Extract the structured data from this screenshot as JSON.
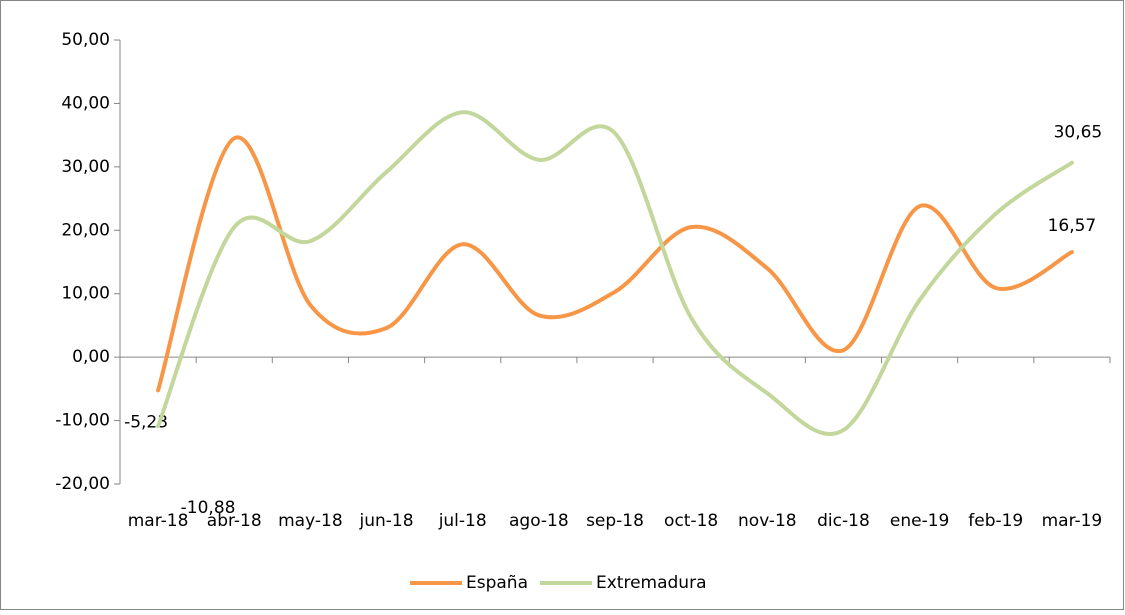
{
  "chart_data": {
    "type": "line",
    "categories": [
      "mar-18",
      "abr-18",
      "may-18",
      "jun-18",
      "jul-18",
      "ago-18",
      "sep-18",
      "oct-18",
      "nov-18",
      "dic-18",
      "ene-19",
      "feb-19",
      "mar-19"
    ],
    "series": [
      {
        "name": "España",
        "color": "#f79646",
        "values": [
          -5.23,
          34.5,
          8.2,
          4.6,
          17.8,
          6.6,
          10.3,
          20.5,
          14,
          1.1,
          23.8,
          10.9,
          16.57
        ],
        "value_labels": [
          "-5,23",
          null,
          null,
          null,
          null,
          null,
          null,
          null,
          null,
          null,
          null,
          null,
          "16,57"
        ]
      },
      {
        "name": "Extremadura",
        "color": "#c3d69b",
        "values": [
          -10.88,
          20.5,
          18.3,
          29.2,
          38.6,
          31.1,
          35.3,
          6.2,
          -5.7,
          -11.5,
          9.0,
          22.6,
          30.65
        ],
        "value_labels": [
          "-10,88",
          null,
          null,
          null,
          null,
          null,
          null,
          null,
          null,
          null,
          null,
          null,
          "30,65"
        ]
      }
    ],
    "ylim": [
      -20,
      50
    ],
    "yticks": [
      {
        "value": -20,
        "label": "-20,00"
      },
      {
        "value": -10,
        "label": "-10,00"
      },
      {
        "value": 0,
        "label": "0,00"
      },
      {
        "value": 10,
        "label": "10,00"
      },
      {
        "value": 20,
        "label": "20,00"
      },
      {
        "value": 30,
        "label": "30,00"
      },
      {
        "value": 40,
        "label": "40,00"
      },
      {
        "value": 50,
        "label": "50,00"
      }
    ],
    "smooth": true,
    "legend": "bottom"
  }
}
